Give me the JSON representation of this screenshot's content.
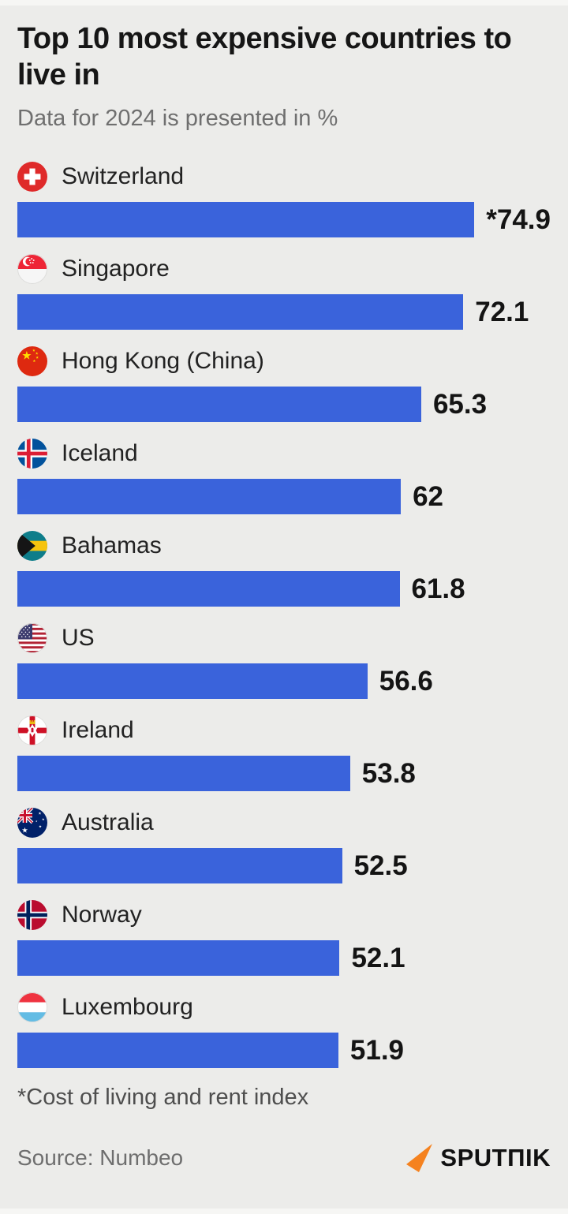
{
  "header": {
    "title": "Top 10 most expensive countries to live in",
    "subtitle": "Data for 2024 is presented in %"
  },
  "chart_data": {
    "type": "bar",
    "orientation": "horizontal",
    "title": "Top 10 most expensive countries to live in",
    "subtitle": "Data for 2024 is presented in %",
    "unit": "%",
    "xlim": [
      0,
      76
    ],
    "grid": false,
    "legend": "none",
    "bar_color": "#3a63db",
    "categories": [
      "Switzerland",
      "Singapore",
      "Hong Kong (China)",
      "Iceland",
      "Bahamas",
      "US",
      "Ireland",
      "Australia",
      "Norway",
      "Luxembourg"
    ],
    "values": [
      74.9,
      72.1,
      65.3,
      62,
      61.8,
      56.6,
      53.8,
      52.5,
      52.1,
      51.9
    ],
    "rows": [
      {
        "country": "Switzerland",
        "value": 74.9,
        "display_value": "*74.9",
        "flag": "switzerland"
      },
      {
        "country": "Singapore",
        "value": 72.1,
        "display_value": "72.1",
        "flag": "singapore"
      },
      {
        "country": "Hong Kong (China)",
        "value": 65.3,
        "display_value": "65.3",
        "flag": "china"
      },
      {
        "country": "Iceland",
        "value": 62,
        "display_value": "62",
        "flag": "iceland"
      },
      {
        "country": "Bahamas",
        "value": 61.8,
        "display_value": "61.8",
        "flag": "bahamas"
      },
      {
        "country": "US",
        "value": 56.6,
        "display_value": "56.6",
        "flag": "us"
      },
      {
        "country": "Ireland",
        "value": 53.8,
        "display_value": "53.8",
        "flag": "northern-ireland"
      },
      {
        "country": "Australia",
        "value": 52.5,
        "display_value": "52.5",
        "flag": "australia"
      },
      {
        "country": "Norway",
        "value": 52.1,
        "display_value": "52.1",
        "flag": "norway"
      },
      {
        "country": "Luxembourg",
        "value": 51.9,
        "display_value": "51.9",
        "flag": "luxembourg"
      }
    ]
  },
  "footnote": "*Cost of living and rent index",
  "footer": {
    "source": "Source: Numbeo",
    "logo_text": "SPUTΠIK",
    "logo_color": "#f5821f"
  }
}
